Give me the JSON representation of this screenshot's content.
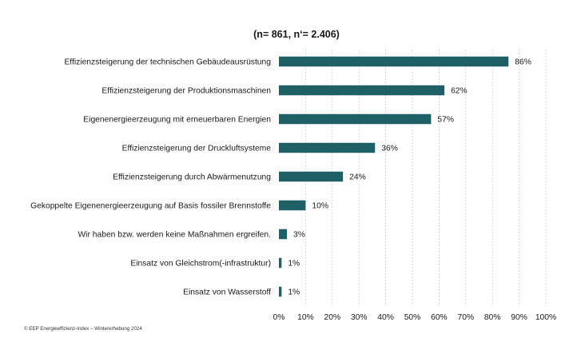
{
  "chart_data": {
    "type": "bar",
    "orientation": "horizontal",
    "title": "",
    "subtitle": "(n= 861, n‘= 2.406)",
    "categories": [
      "Effizienzsteigerung der technischen Gebäudeausrüstung",
      "Effizienzsteigerung der Produktionsmaschinen",
      "Eigenenergieerzeugung mit erneuerbaren Energien",
      "Effizienzsteigerung der Druckluftsysteme",
      "Effizienzsteigerung durch Abwärmenutzung",
      "Gekoppelte Eigenenergieerzeugung auf Basis fossiler Brennstoffe",
      "Wir haben bzw. werden keine Maßnahmen ergreifen.",
      "Einsatz von Gleichstrom(-infrastruktur)",
      "Einsatz von Wasserstoff"
    ],
    "values": [
      86,
      62,
      57,
      36,
      24,
      10,
      3,
      1,
      1
    ],
    "value_labels": [
      "86%",
      "62%",
      "57%",
      "36%",
      "24%",
      "10%",
      "3%",
      "1%",
      "1%"
    ],
    "xlim": [
      0,
      100
    ],
    "ticks": [
      0,
      10,
      20,
      30,
      40,
      50,
      60,
      70,
      80,
      90,
      100
    ],
    "tick_labels": [
      "0%",
      "10%",
      "20%",
      "30%",
      "40%",
      "50%",
      "60%",
      "70%",
      "80%",
      "90%",
      "100%"
    ],
    "xlabel": "",
    "ylabel": "",
    "grid": true,
    "legend": "none",
    "bar_color": "#1f5f66",
    "grid_color": "#d0d0d0"
  },
  "footnote": "© EEP Energieeffizienz-Index – Wintererhebung 2024"
}
